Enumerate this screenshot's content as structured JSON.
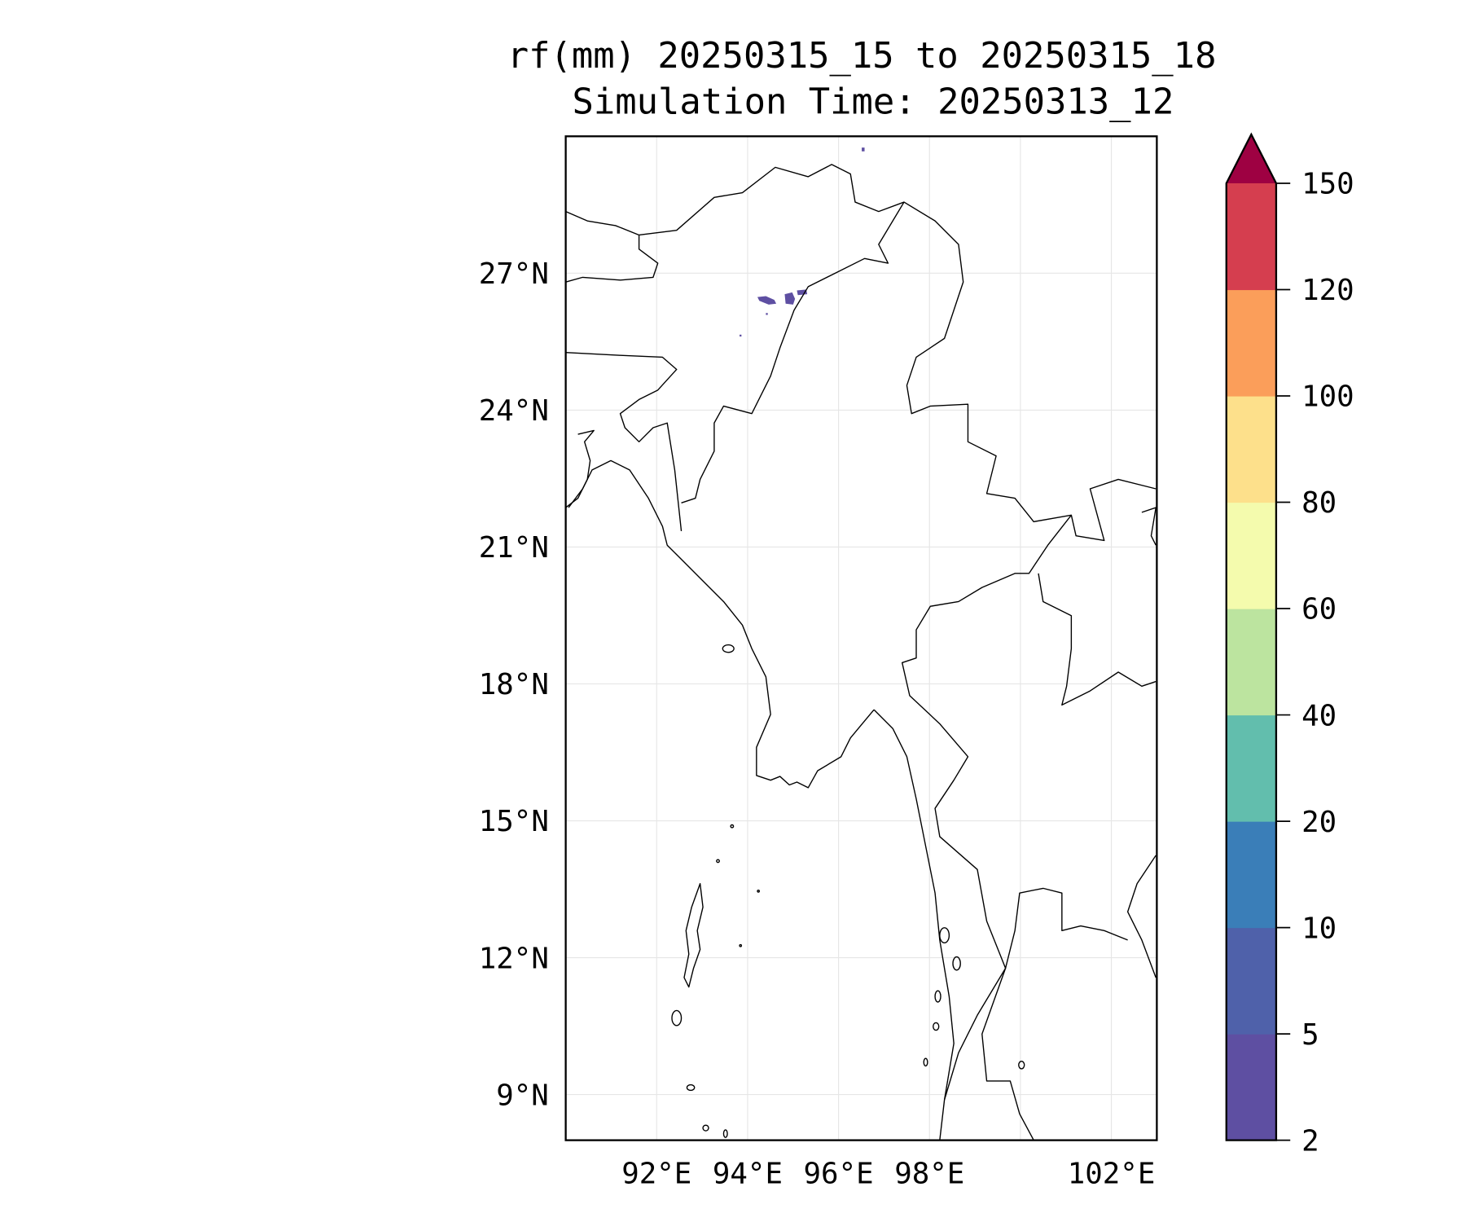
{
  "chart_data": {
    "type": "heatmap",
    "title": "rf(mm) 20250315_15 to 20250315_18",
    "subtitle": "Simulation Time: 20250313_12",
    "xlabel": "",
    "ylabel": "",
    "xlim": [
      90,
      103
    ],
    "ylim": [
      8,
      30
    ],
    "grid": true,
    "xticks": [
      92,
      94,
      96,
      98,
      102
    ],
    "xtick_labels": [
      "92°E",
      "94°E",
      "96°E",
      "98°E",
      "102°E"
    ],
    "gridlines_lon": [
      92,
      94,
      96,
      98,
      100,
      102
    ],
    "yticks": [
      9,
      12,
      15,
      18,
      21,
      24,
      27
    ],
    "ytick_labels": [
      "9°N",
      "12°N",
      "15°N",
      "18°N",
      "21°N",
      "24°N",
      "27°N"
    ],
    "colorbar": {
      "levels": [
        2,
        5,
        10,
        20,
        40,
        60,
        80,
        100,
        120,
        150
      ],
      "tick_labels": [
        "2",
        "5",
        "10",
        "20",
        "40",
        "60",
        "80",
        "100",
        "120",
        "150"
      ],
      "colors": [
        "#5e4fa2",
        "#4f61aa",
        "#3a7eb8",
        "#62bead",
        "#bce49f",
        "#f4fbad",
        "#fde08b",
        "#fb9e5a",
        "#d53e4f"
      ],
      "extend_max_color": "#9e0142",
      "extend": "max"
    },
    "rain_areas": [
      {
        "lon": 94.5,
        "lat": 26.4,
        "value_range": "2-5"
      },
      {
        "lon": 95.2,
        "lat": 26.5,
        "value_range": "2-5"
      },
      {
        "lon": 96.6,
        "lat": 29.7,
        "value_range": "2-5"
      }
    ]
  }
}
